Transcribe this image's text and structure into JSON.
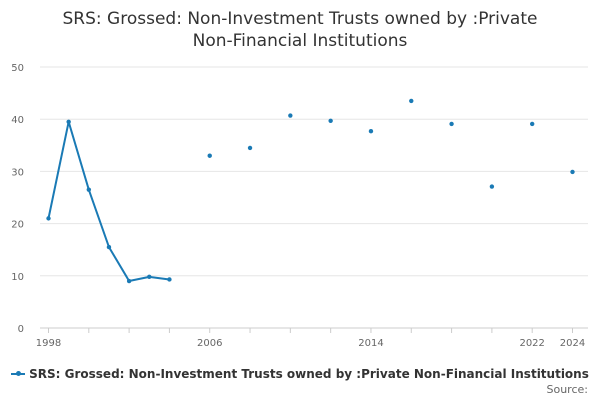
{
  "title_lines": [
    "SRS: Grossed: Non-Investment Trusts owned by :Private",
    "Non-Financial Institutions"
  ],
  "legend": {
    "label": "SRS: Grossed: Non-Investment Trusts owned by :Private Non-Financial Institutions"
  },
  "source": "Source:",
  "colors": {
    "series": "#1a7ab5",
    "grid": "#e6e6e6",
    "axis": "#cccccc"
  },
  "chart_data": {
    "type": "line",
    "title": "SRS: Grossed: Non-Investment Trusts owned by :Private Non-Financial Institutions",
    "xlabel": "",
    "ylabel": "",
    "xlim": [
      1998,
      2024
    ],
    "ylim": [
      0,
      50
    ],
    "x_ticks": [
      1998,
      2006,
      2014,
      2022,
      2024
    ],
    "y_ticks": [
      0,
      10,
      20,
      30,
      40,
      50
    ],
    "grid": true,
    "legend_position": "bottom",
    "series": [
      {
        "name": "SRS: Grossed: Non-Investment Trusts owned by :Private Non-Financial Institutions",
        "points": [
          {
            "x": 1998,
            "y": 21.0
          },
          {
            "x": 1999,
            "y": 39.5
          },
          {
            "x": 2000,
            "y": 26.5
          },
          {
            "x": 2001,
            "y": 15.5
          },
          {
            "x": 2002,
            "y": 9.0
          },
          {
            "x": 2003,
            "y": 9.8
          },
          {
            "x": 2004,
            "y": 9.3
          },
          {
            "x": 2006,
            "y": 33.0
          },
          {
            "x": 2008,
            "y": 34.5
          },
          {
            "x": 2010,
            "y": 40.7
          },
          {
            "x": 2012,
            "y": 39.7
          },
          {
            "x": 2014,
            "y": 37.7
          },
          {
            "x": 2016,
            "y": 43.5
          },
          {
            "x": 2018,
            "y": 39.1
          },
          {
            "x": 2020,
            "y": 27.1
          },
          {
            "x": 2022,
            "y": 39.1
          },
          {
            "x": 2024,
            "y": 29.9
          }
        ]
      }
    ]
  }
}
